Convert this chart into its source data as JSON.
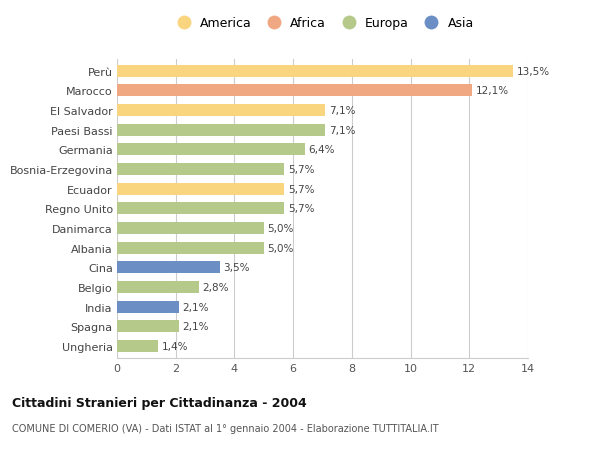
{
  "countries": [
    "Perù",
    "Marocco",
    "El Salvador",
    "Paesi Bassi",
    "Germania",
    "Bosnia-Erzegovina",
    "Ecuador",
    "Regno Unito",
    "Danimarca",
    "Albania",
    "Cina",
    "Belgio",
    "India",
    "Spagna",
    "Ungheria"
  ],
  "values": [
    13.5,
    12.1,
    7.1,
    7.1,
    6.4,
    5.7,
    5.7,
    5.7,
    5.0,
    5.0,
    3.5,
    2.8,
    2.1,
    2.1,
    1.4
  ],
  "labels": [
    "13,5%",
    "12,1%",
    "7,1%",
    "7,1%",
    "6,4%",
    "5,7%",
    "5,7%",
    "5,7%",
    "5,0%",
    "5,0%",
    "3,5%",
    "2,8%",
    "2,1%",
    "2,1%",
    "1,4%"
  ],
  "continents": [
    "America",
    "Africa",
    "America",
    "Europa",
    "Europa",
    "Europa",
    "America",
    "Europa",
    "Europa",
    "Europa",
    "Asia",
    "Europa",
    "Asia",
    "Europa",
    "Europa"
  ],
  "colors": {
    "America": "#F9D580",
    "Africa": "#F0A882",
    "Europa": "#B5C98A",
    "Asia": "#6B8FC4"
  },
  "legend_order": [
    "America",
    "Africa",
    "Europa",
    "Asia"
  ],
  "xlim": [
    0,
    14
  ],
  "xticks": [
    0,
    2,
    4,
    6,
    8,
    10,
    12,
    14
  ],
  "title": "Cittadini Stranieri per Cittadinanza - 2004",
  "subtitle": "COMUNE DI COMERIO (VA) - Dati ISTAT al 1° gennaio 2004 - Elaborazione TUTTITALIA.IT",
  "background_color": "#ffffff",
  "grid_color": "#cccccc",
  "bar_height": 0.6
}
